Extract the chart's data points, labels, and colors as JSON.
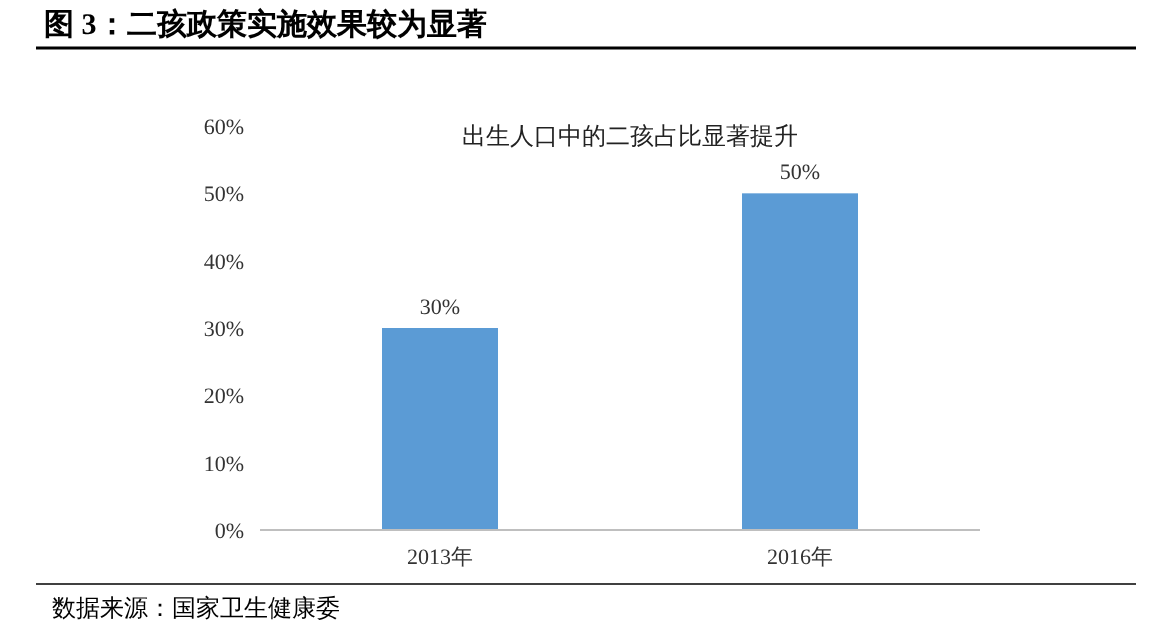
{
  "chart_data": {
    "type": "bar",
    "title": "图 3：二孩政策实施效果较为显著",
    "subtitle": "出生人口中的二孩占比显著提升",
    "categories": [
      "2013年",
      "2016年"
    ],
    "values": [
      30,
      50
    ],
    "color": "#5b9bd5",
    "value_labels": [
      "30%",
      "50%"
    ],
    "ylim": [
      0,
      60
    ],
    "yticks": [
      {
        "value": 0,
        "label": "0%"
      },
      {
        "value": 10,
        "label": "10%"
      },
      {
        "value": 20,
        "label": "20%"
      },
      {
        "value": 30,
        "label": "30%"
      },
      {
        "value": 40,
        "label": "40%"
      },
      {
        "value": 50,
        "label": "50%"
      },
      {
        "value": 60,
        "label": "60%"
      }
    ],
    "annotations": [
      "数据来源：国家卫生健康委"
    ]
  }
}
